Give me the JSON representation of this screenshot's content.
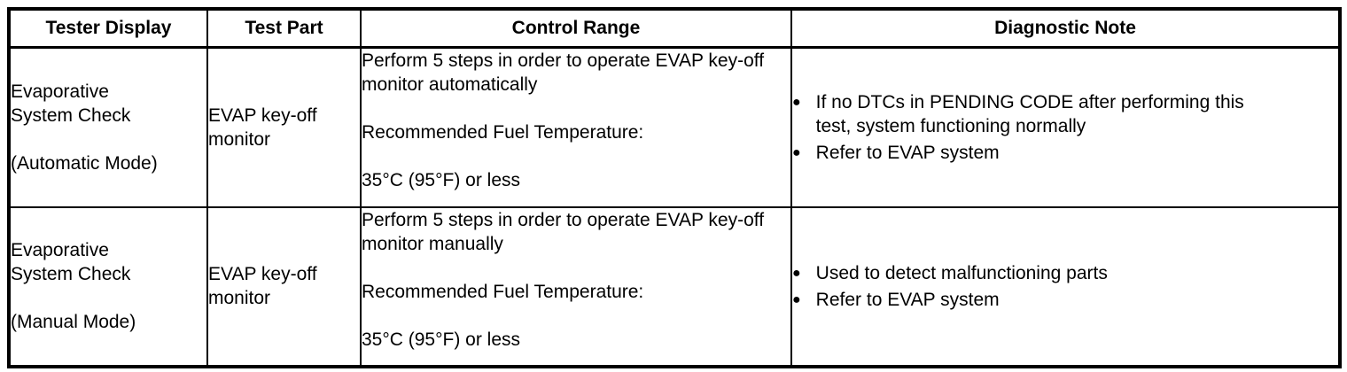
{
  "icons": {
    "bullet_glyph": "●"
  },
  "colors": {
    "border": "#000000",
    "text": "#000000",
    "background": "#ffffff"
  },
  "table": {
    "headers": [
      "Tester Display",
      "Test Part",
      "Control Range",
      "Diagnostic Note"
    ],
    "rows": [
      {
        "tester_display": [
          "Evaporative",
          "System Check",
          "",
          "(Automatic Mode)"
        ],
        "test_part": [
          "EVAP key-off",
          "monitor"
        ],
        "control_range": [
          "Perform 5 steps in order to operate EVAP key-off monitor automatically",
          "Recommended Fuel Temperature:",
          "35°C (95°F) or less"
        ],
        "diagnostic_notes": [
          "If no DTCs in PENDING CODE after performing this test, system functioning normally",
          "Refer to EVAP system"
        ]
      },
      {
        "tester_display": [
          "Evaporative",
          "System Check",
          "",
          "(Manual Mode)"
        ],
        "test_part": [
          "EVAP key-off",
          "monitor"
        ],
        "control_range": [
          "Perform 5 steps in order to operate EVAP key-off monitor manually",
          "Recommended Fuel Temperature:",
          "35°C (95°F) or less"
        ],
        "diagnostic_notes": [
          "Used to detect malfunctioning parts",
          "Refer to EVAP system"
        ]
      }
    ]
  }
}
